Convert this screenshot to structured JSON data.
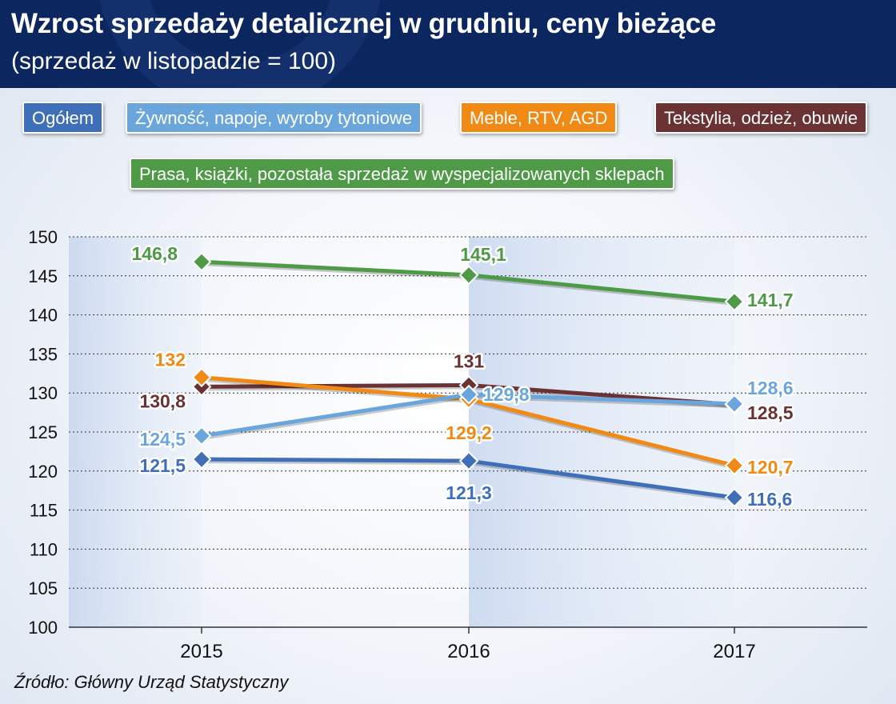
{
  "header": {
    "title": "Wzrost sprzedaży detalicznej w grudniu, ceny bieżące",
    "subtitle": "(sprzedaż w listopadzie = 100)"
  },
  "legend": [
    {
      "label": "Ogółem",
      "color": "#3f6fb8"
    },
    {
      "label": "Żywność, napoje, wyroby tytoniowe",
      "color": "#6aa6dc"
    },
    {
      "label": "Meble, RTV, AGD",
      "color": "#f08a14"
    },
    {
      "label": "Tekstylia, odzież, obuwie",
      "color": "#6b3233"
    },
    {
      "label": "Prasa, książki, pozostała sprzedaż w wyspecjalizowanych sklepach",
      "color": "#4e9a47"
    }
  ],
  "chart_data": {
    "type": "line",
    "categories": [
      "2015",
      "2016",
      "2017"
    ],
    "ylim": [
      100,
      150
    ],
    "yticks": [
      "100",
      "105",
      "110",
      "115",
      "120",
      "125",
      "130",
      "135",
      "140",
      "145",
      "150"
    ],
    "grid": true,
    "series": [
      {
        "name": "Ogółem",
        "color": "#3f6fb8",
        "values": [
          121.5,
          121.3,
          116.6
        ],
        "labels": [
          "121,5",
          "121,3",
          "116,6"
        ]
      },
      {
        "name": "Żywność, napoje, wyroby tytoniowe",
        "color": "#6aa6dc",
        "values": [
          124.5,
          129.8,
          128.6
        ],
        "labels": [
          "124,5",
          "129,8",
          "128,6"
        ]
      },
      {
        "name": "Meble, RTV, AGD",
        "color": "#f08a14",
        "values": [
          132,
          129.2,
          120.7
        ],
        "labels": [
          "132",
          "129,2",
          "120,7"
        ]
      },
      {
        "name": "Tekstylia, odzież, obuwie",
        "color": "#6b3233",
        "values": [
          130.8,
          131,
          128.5
        ],
        "labels": [
          "130,8",
          "131",
          "128,5"
        ]
      },
      {
        "name": "Prasa, książki, pozostała sprzedaż w wyspecjalizowanych sklepach",
        "color": "#4e9a47",
        "values": [
          146.8,
          145.1,
          141.7
        ],
        "labels": [
          "146,8",
          "145,1",
          "141,7"
        ]
      }
    ]
  },
  "source": "Źródło: Główny Urząd Statystyczny"
}
